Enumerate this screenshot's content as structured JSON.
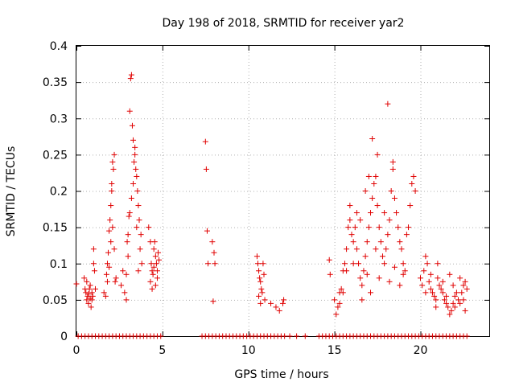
{
  "chart_data": {
    "type": "scatter",
    "title": "Day 198 of 2018, SRMTID for receiver yar2",
    "xlabel": "GPS time / hours",
    "ylabel": "SRMTID / TECUs",
    "xlim": [
      0,
      24
    ],
    "ylim": [
      0,
      0.4
    ],
    "xticks": [
      0,
      5,
      10,
      15,
      20
    ],
    "yticks": [
      0,
      0.05,
      0.1,
      0.15,
      0.2,
      0.25,
      0.3,
      0.35,
      0.4
    ],
    "ytick_labels": [
      "0",
      "0.05",
      "0.1",
      "0.15",
      "0.2",
      "0.25",
      "0.3",
      "0.35",
      "0.4"
    ],
    "grid": true,
    "marker": "+",
    "color": "#e00000",
    "series": [
      {
        "name": "SRMTID",
        "points": [
          [
            0.0,
            0.072
          ],
          [
            0.45,
            0.08
          ],
          [
            0.5,
            0.065
          ],
          [
            0.55,
            0.06
          ],
          [
            0.6,
            0.05
          ],
          [
            0.65,
            0.055
          ],
          [
            0.7,
            0.045
          ],
          [
            0.75,
            0.065
          ],
          [
            0.8,
            0.07
          ],
          [
            0.85,
            0.04
          ],
          [
            0.9,
            0.06
          ],
          [
            0.95,
            0.055
          ],
          [
            1.0,
            0.1
          ],
          [
            1.0,
            0.12
          ],
          [
            1.05,
            0.09
          ],
          [
            1.1,
            0.065
          ],
          [
            0.6,
            0.075
          ],
          [
            0.7,
            0.058
          ],
          [
            0.8,
            0.052
          ],
          [
            0.9,
            0.05
          ],
          [
            1.6,
            0.06
          ],
          [
            1.7,
            0.055
          ],
          [
            1.75,
            0.085
          ],
          [
            1.8,
            0.1
          ],
          [
            1.85,
            0.115
          ],
          [
            1.9,
            0.145
          ],
          [
            1.95,
            0.16
          ],
          [
            2.0,
            0.18
          ],
          [
            2.05,
            0.2
          ],
          [
            2.1,
            0.24
          ],
          [
            2.15,
            0.23
          ],
          [
            2.2,
            0.25
          ],
          [
            2.25,
            0.075
          ],
          [
            2.3,
            0.08
          ],
          [
            2.0,
            0.13
          ],
          [
            2.1,
            0.15
          ],
          [
            2.2,
            0.12
          ],
          [
            1.9,
            0.095
          ],
          [
            1.8,
            0.075
          ],
          [
            2.05,
            0.21
          ],
          [
            2.6,
            0.07
          ],
          [
            2.7,
            0.09
          ],
          [
            2.8,
            0.06
          ],
          [
            2.9,
            0.05
          ],
          [
            2.95,
            0.13
          ],
          [
            3.0,
            0.14
          ],
          [
            3.05,
            0.165
          ],
          [
            3.1,
            0.31
          ],
          [
            3.15,
            0.355
          ],
          [
            3.2,
            0.36
          ],
          [
            3.25,
            0.29
          ],
          [
            3.3,
            0.27
          ],
          [
            3.35,
            0.24
          ],
          [
            3.4,
            0.26
          ],
          [
            3.45,
            0.23
          ],
          [
            3.5,
            0.22
          ],
          [
            3.55,
            0.2
          ],
          [
            3.6,
            0.18
          ],
          [
            3.65,
            0.16
          ],
          [
            3.7,
            0.12
          ],
          [
            3.75,
            0.14
          ],
          [
            3.8,
            0.1
          ],
          [
            3.3,
            0.21
          ],
          [
            3.4,
            0.25
          ],
          [
            3.2,
            0.19
          ],
          [
            3.1,
            0.17
          ],
          [
            3.5,
            0.15
          ],
          [
            3.6,
            0.09
          ],
          [
            3.0,
            0.11
          ],
          [
            2.9,
            0.085
          ],
          [
            4.2,
            0.15
          ],
          [
            4.3,
            0.13
          ],
          [
            4.35,
            0.1
          ],
          [
            4.4,
            0.09
          ],
          [
            4.45,
            0.085
          ],
          [
            4.5,
            0.12
          ],
          [
            4.55,
            0.13
          ],
          [
            4.6,
            0.11
          ],
          [
            4.65,
            0.1
          ],
          [
            4.7,
            0.09
          ],
          [
            4.75,
            0.115
          ],
          [
            4.8,
            0.105
          ],
          [
            4.3,
            0.075
          ],
          [
            4.4,
            0.065
          ],
          [
            4.5,
            0.095
          ],
          [
            4.6,
            0.07
          ],
          [
            4.7,
            0.08
          ],
          [
            7.5,
            0.268
          ],
          [
            7.55,
            0.23
          ],
          [
            7.6,
            0.145
          ],
          [
            7.65,
            0.1
          ],
          [
            7.9,
            0.13
          ],
          [
            8.0,
            0.115
          ],
          [
            8.05,
            0.1
          ],
          [
            7.95,
            0.048
          ],
          [
            10.5,
            0.11
          ],
          [
            10.55,
            0.1
          ],
          [
            10.6,
            0.09
          ],
          [
            10.65,
            0.08
          ],
          [
            10.7,
            0.075
          ],
          [
            10.75,
            0.065
          ],
          [
            10.8,
            0.06
          ],
          [
            10.85,
            0.1
          ],
          [
            10.9,
            0.085
          ],
          [
            10.95,
            0.05
          ],
          [
            10.6,
            0.055
          ],
          [
            10.7,
            0.045
          ],
          [
            11.3,
            0.045
          ],
          [
            11.6,
            0.04
          ],
          [
            11.8,
            0.035
          ],
          [
            12.0,
            0.045
          ],
          [
            12.05,
            0.05
          ],
          [
            14.7,
            0.105
          ],
          [
            14.75,
            0.085
          ],
          [
            15.0,
            0.05
          ],
          [
            15.1,
            0.03
          ],
          [
            15.2,
            0.04
          ],
          [
            15.3,
            0.06
          ],
          [
            15.4,
            0.065
          ],
          [
            15.5,
            0.09
          ],
          [
            15.6,
            0.1
          ],
          [
            15.7,
            0.12
          ],
          [
            15.8,
            0.15
          ],
          [
            15.9,
            0.16
          ],
          [
            16.0,
            0.14
          ],
          [
            16.1,
            0.13
          ],
          [
            16.2,
            0.15
          ],
          [
            16.3,
            0.12
          ],
          [
            16.4,
            0.1
          ],
          [
            16.5,
            0.08
          ],
          [
            16.6,
            0.07
          ],
          [
            16.7,
            0.09
          ],
          [
            16.8,
            0.11
          ],
          [
            16.9,
            0.13
          ],
          [
            17.0,
            0.15
          ],
          [
            17.1,
            0.17
          ],
          [
            17.2,
            0.19
          ],
          [
            17.3,
            0.21
          ],
          [
            17.4,
            0.22
          ],
          [
            17.5,
            0.18
          ],
          [
            17.6,
            0.15
          ],
          [
            17.7,
            0.13
          ],
          [
            17.8,
            0.11
          ],
          [
            17.9,
            0.1
          ],
          [
            18.0,
            0.12
          ],
          [
            18.1,
            0.14
          ],
          [
            18.2,
            0.16
          ],
          [
            18.3,
            0.2
          ],
          [
            18.4,
            0.23
          ],
          [
            18.5,
            0.19
          ],
          [
            18.6,
            0.17
          ],
          [
            18.7,
            0.15
          ],
          [
            18.8,
            0.13
          ],
          [
            18.9,
            0.12
          ],
          [
            19.0,
            0.1
          ],
          [
            19.1,
            0.09
          ],
          [
            19.2,
            0.14
          ],
          [
            19.3,
            0.15
          ],
          [
            19.4,
            0.18
          ],
          [
            19.5,
            0.21
          ],
          [
            19.6,
            0.22
          ],
          [
            19.7,
            0.2
          ],
          [
            17.2,
            0.272
          ],
          [
            17.5,
            0.25
          ],
          [
            18.1,
            0.32
          ],
          [
            18.4,
            0.24
          ],
          [
            17.0,
            0.22
          ],
          [
            16.8,
            0.2
          ],
          [
            16.5,
            0.16
          ],
          [
            16.3,
            0.17
          ],
          [
            15.9,
            0.18
          ],
          [
            16.1,
            0.1
          ],
          [
            15.7,
            0.09
          ],
          [
            15.5,
            0.06
          ],
          [
            15.3,
            0.045
          ],
          [
            16.6,
            0.05
          ],
          [
            17.1,
            0.06
          ],
          [
            17.6,
            0.08
          ],
          [
            18.2,
            0.075
          ],
          [
            18.8,
            0.07
          ],
          [
            19.0,
            0.085
          ],
          [
            18.5,
            0.095
          ],
          [
            17.9,
            0.17
          ],
          [
            17.4,
            0.12
          ],
          [
            16.9,
            0.085
          ],
          [
            20.0,
            0.08
          ],
          [
            20.1,
            0.07
          ],
          [
            20.2,
            0.09
          ],
          [
            20.3,
            0.11
          ],
          [
            20.4,
            0.1
          ],
          [
            20.5,
            0.075
          ],
          [
            20.6,
            0.065
          ],
          [
            20.7,
            0.06
          ],
          [
            20.8,
            0.055
          ],
          [
            20.9,
            0.05
          ],
          [
            21.0,
            0.08
          ],
          [
            21.1,
            0.07
          ],
          [
            21.2,
            0.065
          ],
          [
            21.3,
            0.06
          ],
          [
            21.4,
            0.05
          ],
          [
            21.5,
            0.045
          ],
          [
            21.6,
            0.04
          ],
          [
            21.7,
            0.03
          ],
          [
            21.8,
            0.035
          ],
          [
            21.9,
            0.045
          ],
          [
            22.0,
            0.055
          ],
          [
            22.1,
            0.06
          ],
          [
            22.2,
            0.05
          ],
          [
            22.3,
            0.045
          ],
          [
            22.4,
            0.06
          ],
          [
            22.5,
            0.07
          ],
          [
            22.6,
            0.075
          ],
          [
            22.7,
            0.065
          ],
          [
            20.3,
            0.06
          ],
          [
            20.6,
            0.085
          ],
          [
            21.0,
            0.1
          ],
          [
            21.3,
            0.075
          ],
          [
            21.7,
            0.085
          ],
          [
            22.0,
            0.04
          ],
          [
            22.3,
            0.08
          ],
          [
            22.5,
            0.05
          ],
          [
            21.5,
            0.055
          ],
          [
            21.9,
            0.07
          ],
          [
            20.9,
            0.04
          ],
          [
            22.6,
            0.035
          ],
          [
            0.1,
            0
          ],
          [
            0.3,
            0
          ],
          [
            0.5,
            0
          ],
          [
            0.7,
            0
          ],
          [
            0.9,
            0
          ],
          [
            1.1,
            0
          ],
          [
            1.3,
            0
          ],
          [
            1.5,
            0
          ],
          [
            1.7,
            0
          ],
          [
            1.9,
            0
          ],
          [
            2.1,
            0
          ],
          [
            2.3,
            0
          ],
          [
            2.5,
            0
          ],
          [
            2.7,
            0
          ],
          [
            2.9,
            0
          ],
          [
            3.1,
            0
          ],
          [
            3.3,
            0
          ],
          [
            3.5,
            0
          ],
          [
            3.7,
            0
          ],
          [
            3.9,
            0
          ],
          [
            4.1,
            0
          ],
          [
            4.3,
            0
          ],
          [
            4.5,
            0
          ],
          [
            4.7,
            0
          ],
          [
            4.9,
            0
          ],
          [
            7.3,
            0
          ],
          [
            7.5,
            0
          ],
          [
            7.7,
            0
          ],
          [
            7.9,
            0
          ],
          [
            8.1,
            0
          ],
          [
            8.3,
            0
          ],
          [
            8.5,
            0
          ],
          [
            8.7,
            0
          ],
          [
            8.9,
            0
          ],
          [
            9.1,
            0
          ],
          [
            9.3,
            0
          ],
          [
            9.5,
            0
          ],
          [
            9.7,
            0
          ],
          [
            9.9,
            0
          ],
          [
            10.1,
            0
          ],
          [
            10.3,
            0
          ],
          [
            10.5,
            0
          ],
          [
            10.7,
            0
          ],
          [
            10.9,
            0
          ],
          [
            11.1,
            0
          ],
          [
            11.3,
            0
          ],
          [
            11.5,
            0
          ],
          [
            11.7,
            0
          ],
          [
            11.9,
            0
          ],
          [
            12.1,
            0
          ],
          [
            12.4,
            0
          ],
          [
            12.8,
            0
          ],
          [
            13.3,
            0
          ],
          [
            14.1,
            0
          ],
          [
            14.3,
            0
          ],
          [
            14.5,
            0
          ],
          [
            14.7,
            0
          ],
          [
            14.9,
            0
          ],
          [
            15.1,
            0
          ],
          [
            15.3,
            0
          ],
          [
            15.5,
            0
          ],
          [
            15.7,
            0
          ],
          [
            15.9,
            0
          ],
          [
            16.1,
            0
          ],
          [
            16.3,
            0
          ],
          [
            16.5,
            0
          ],
          [
            16.7,
            0
          ],
          [
            16.9,
            0
          ],
          [
            17.1,
            0
          ],
          [
            17.3,
            0
          ],
          [
            17.5,
            0
          ],
          [
            17.7,
            0
          ],
          [
            17.9,
            0
          ],
          [
            18.1,
            0
          ],
          [
            18.3,
            0
          ],
          [
            18.5,
            0
          ],
          [
            18.7,
            0
          ],
          [
            18.9,
            0
          ],
          [
            19.1,
            0
          ],
          [
            19.3,
            0
          ],
          [
            19.5,
            0
          ],
          [
            19.7,
            0
          ],
          [
            19.9,
            0
          ],
          [
            20.1,
            0
          ],
          [
            20.3,
            0
          ],
          [
            20.5,
            0
          ],
          [
            20.7,
            0
          ],
          [
            20.9,
            0
          ],
          [
            21.1,
            0
          ],
          [
            21.3,
            0
          ],
          [
            21.5,
            0
          ],
          [
            21.7,
            0
          ],
          [
            21.9,
            0
          ],
          [
            22.1,
            0
          ],
          [
            22.3,
            0
          ],
          [
            22.5,
            0
          ],
          [
            22.7,
            0
          ]
        ]
      }
    ]
  }
}
